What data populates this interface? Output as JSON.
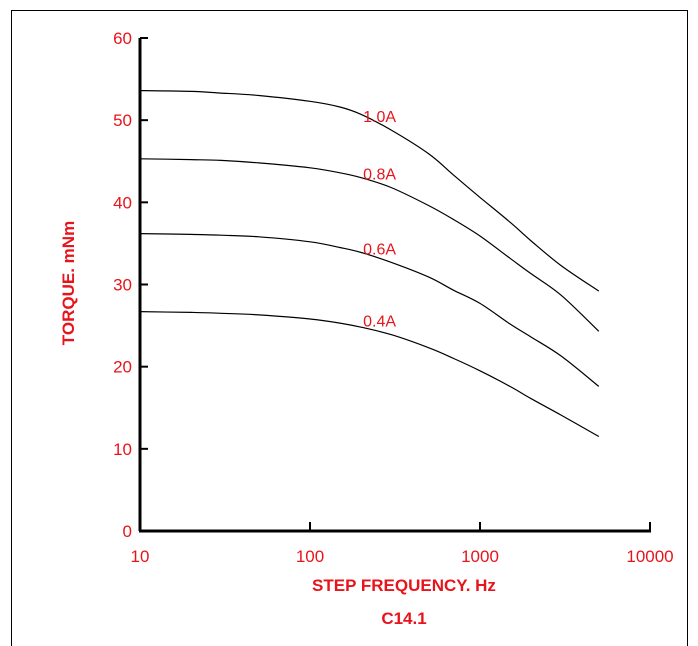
{
  "chart_data": {
    "type": "line",
    "caption": "C14.1",
    "xlabel": "STEP FREQUENCY. Hz",
    "ylabel": "TORQUE. mNm",
    "x_scale": "log",
    "xlim": [
      10,
      10000
    ],
    "ylim": [
      0,
      60
    ],
    "x_ticks": [
      "10",
      "100",
      "1000",
      "10000"
    ],
    "y_ticks": [
      "0",
      "10",
      "20",
      "30",
      "40",
      "50",
      "60"
    ],
    "grid": false,
    "series": [
      {
        "name": "1.0A",
        "x": [
          10,
          20,
          30,
          50,
          100,
          150,
          200,
          300,
          500,
          700,
          1000,
          1500,
          2000,
          3000,
          5000
        ],
        "y": [
          53.6,
          53.5,
          53.3,
          53.0,
          52.3,
          51.6,
          50.7,
          48.8,
          45.9,
          43.3,
          40.6,
          37.6,
          35.3,
          32.3,
          29.2
        ]
      },
      {
        "name": "0.8A",
        "x": [
          10,
          20,
          30,
          50,
          100,
          150,
          200,
          300,
          500,
          700,
          1000,
          1500,
          2000,
          3000,
          5000
        ],
        "y": [
          45.3,
          45.2,
          45.1,
          44.8,
          44.2,
          43.6,
          43.0,
          41.8,
          39.6,
          37.9,
          35.9,
          33.2,
          31.3,
          28.7,
          24.3
        ]
      },
      {
        "name": "0.6A",
        "x": [
          10,
          20,
          30,
          50,
          100,
          150,
          200,
          300,
          500,
          700,
          1000,
          1500,
          2000,
          3000,
          5000
        ],
        "y": [
          36.2,
          36.1,
          36.0,
          35.8,
          35.2,
          34.5,
          33.9,
          32.7,
          30.9,
          29.3,
          27.7,
          25.2,
          23.6,
          21.3,
          17.6
        ]
      },
      {
        "name": "0.4A",
        "x": [
          10,
          20,
          30,
          50,
          100,
          150,
          200,
          300,
          500,
          700,
          1000,
          1500,
          2000,
          3000,
          5000
        ],
        "y": [
          26.7,
          26.6,
          26.5,
          26.3,
          25.8,
          25.3,
          24.8,
          23.9,
          22.3,
          21.0,
          19.5,
          17.6,
          16.1,
          14.1,
          11.5
        ]
      }
    ],
    "label_positions_at_x": 300
  }
}
